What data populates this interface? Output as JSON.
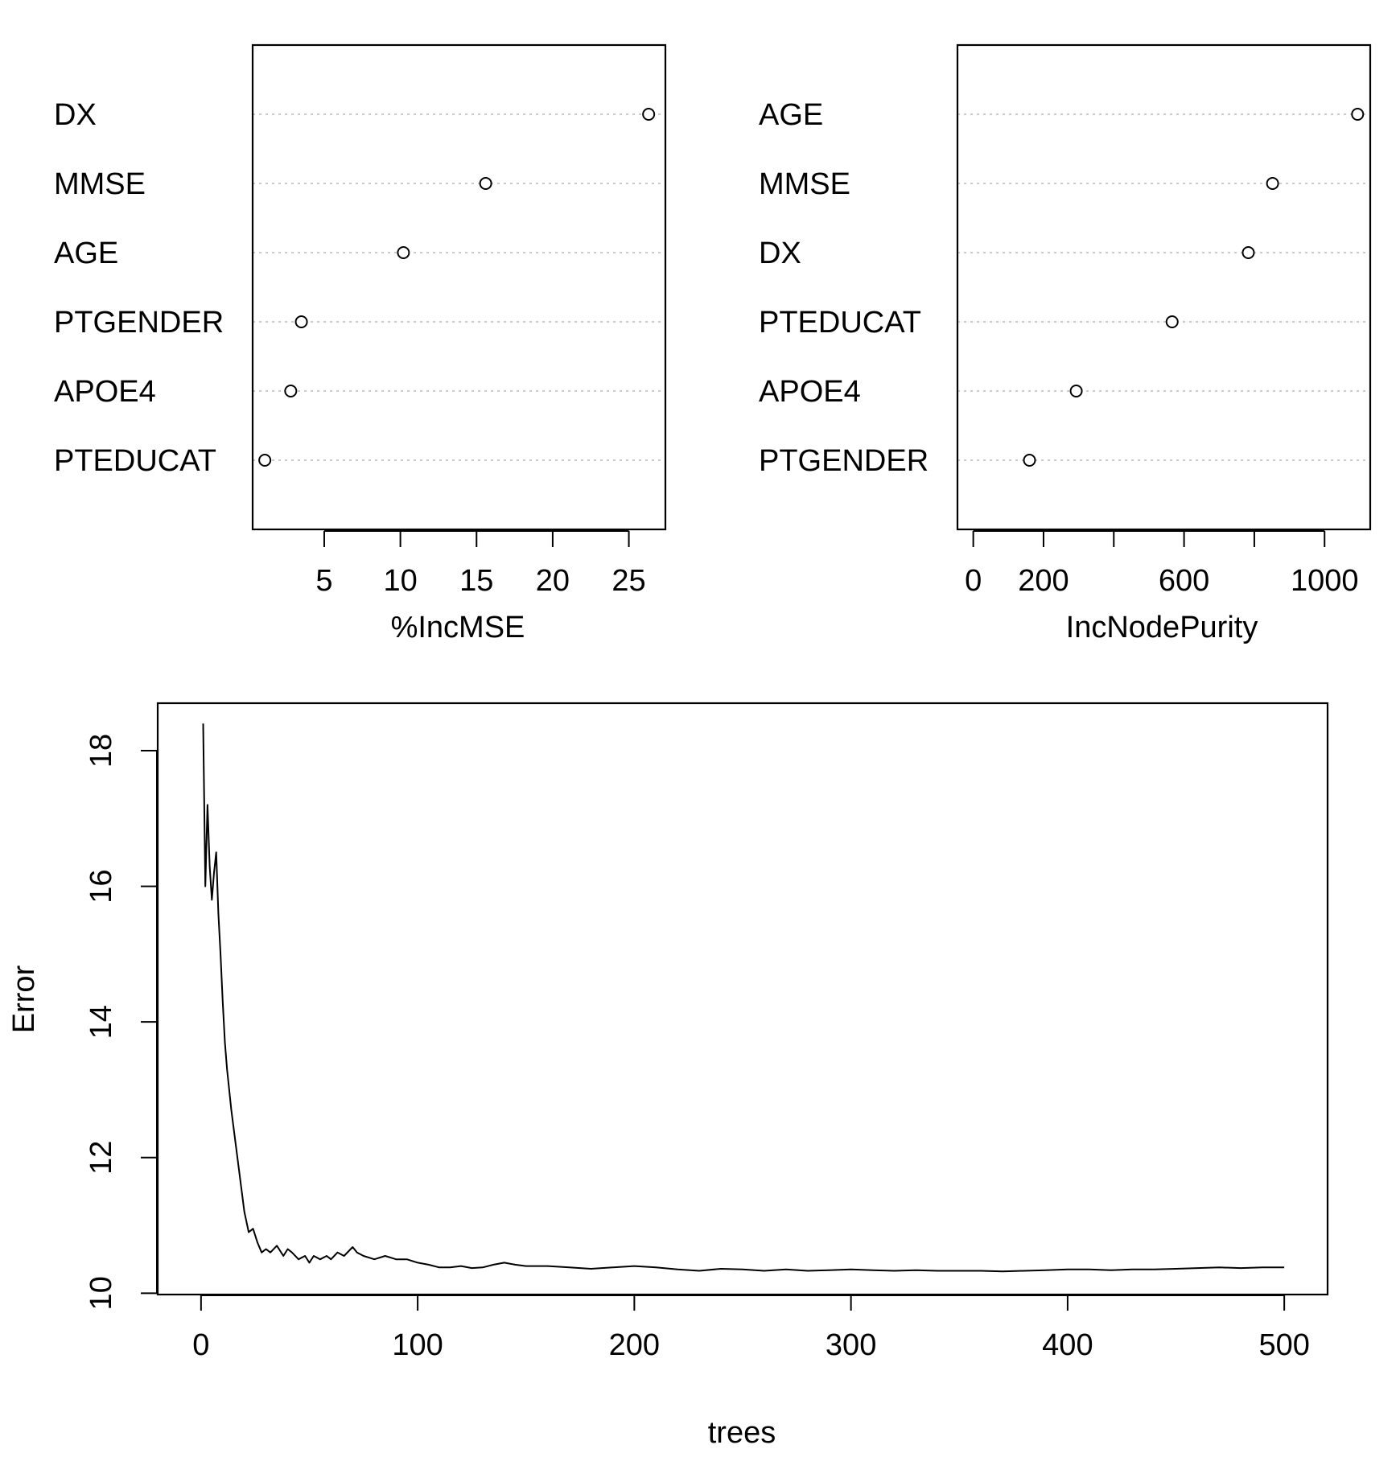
{
  "chart_data": [
    {
      "type": "scatter",
      "variant": "dotchart",
      "xlabel": "%IncMSE",
      "categories": [
        "DX",
        "MMSE",
        "AGE",
        "PTGENDER",
        "APOE4",
        "PTEDUCAT"
      ],
      "values": [
        26.3,
        15.6,
        10.2,
        3.5,
        2.8,
        1.1
      ],
      "xlim": [
        0.3,
        27.4
      ],
      "xticks": [
        5,
        10,
        15,
        20,
        25
      ],
      "xtick_labels": [
        "5",
        "10",
        "15",
        "20",
        "25"
      ],
      "grid": "dotted horizontal",
      "legend": "none"
    },
    {
      "type": "scatter",
      "variant": "dotchart",
      "xlabel": "IncNodePurity",
      "categories": [
        "AGE",
        "MMSE",
        "DX",
        "PTEDUCAT",
        "APOE4",
        "PTGENDER"
      ],
      "values": [
        1094,
        852,
        783,
        566,
        293,
        160
      ],
      "xlim": [
        -45,
        1130
      ],
      "xticks": [
        0,
        200,
        400,
        600,
        800,
        1000
      ],
      "xtick_labels": [
        "0",
        "200",
        "",
        "600",
        "",
        "1000"
      ],
      "grid": "dotted horizontal",
      "legend": "none"
    },
    {
      "type": "line",
      "xlabel": "trees",
      "ylabel": "Error",
      "xlim": [
        -20,
        520
      ],
      "ylim": [
        9.98,
        18.7
      ],
      "xticks": [
        0,
        100,
        200,
        300,
        400,
        500
      ],
      "xtick_labels": [
        "0",
        "100",
        "200",
        "300",
        "400",
        "500"
      ],
      "yticks": [
        10,
        12,
        14,
        16,
        18
      ],
      "ytick_labels": [
        "10",
        "12",
        "14",
        "16",
        "18"
      ],
      "legend": "none",
      "series": [
        {
          "x": [
            1,
            2,
            3,
            4,
            5,
            6,
            7,
            8,
            9,
            10,
            11,
            12,
            14,
            16,
            18,
            20,
            22,
            24,
            26,
            28,
            30,
            32,
            35,
            38,
            40,
            42,
            45,
            48,
            50,
            52,
            55,
            58,
            60,
            63,
            66,
            70,
            72,
            75,
            80,
            85,
            90,
            95,
            100,
            105,
            110,
            115,
            120,
            125,
            130,
            135,
            140,
            145,
            150,
            160,
            170,
            180,
            190,
            200,
            210,
            220,
            230,
            240,
            250,
            260,
            270,
            280,
            290,
            300,
            310,
            320,
            330,
            340,
            350,
            360,
            370,
            380,
            390,
            400,
            410,
            420,
            430,
            440,
            450,
            460,
            470,
            480,
            490,
            500
          ],
          "values": [
            18.4,
            16.0,
            17.2,
            16.3,
            15.8,
            16.2,
            16.5,
            15.6,
            15.0,
            14.3,
            13.7,
            13.3,
            12.7,
            12.2,
            11.7,
            11.2,
            10.9,
            10.95,
            10.75,
            10.6,
            10.65,
            10.6,
            10.7,
            10.55,
            10.65,
            10.6,
            10.5,
            10.55,
            10.45,
            10.55,
            10.5,
            10.55,
            10.5,
            10.6,
            10.55,
            10.68,
            10.6,
            10.55,
            10.5,
            10.55,
            10.5,
            10.5,
            10.45,
            10.42,
            10.38,
            10.38,
            10.4,
            10.37,
            10.38,
            10.42,
            10.45,
            10.42,
            10.4,
            10.4,
            10.38,
            10.36,
            10.38,
            10.4,
            10.38,
            10.35,
            10.33,
            10.36,
            10.35,
            10.33,
            10.35,
            10.33,
            10.34,
            10.35,
            10.34,
            10.33,
            10.34,
            10.33,
            10.33,
            10.33,
            10.32,
            10.33,
            10.34,
            10.35,
            10.35,
            10.34,
            10.35,
            10.35,
            10.36,
            10.37,
            10.38,
            10.37,
            10.38,
            10.38
          ]
        }
      ]
    }
  ]
}
